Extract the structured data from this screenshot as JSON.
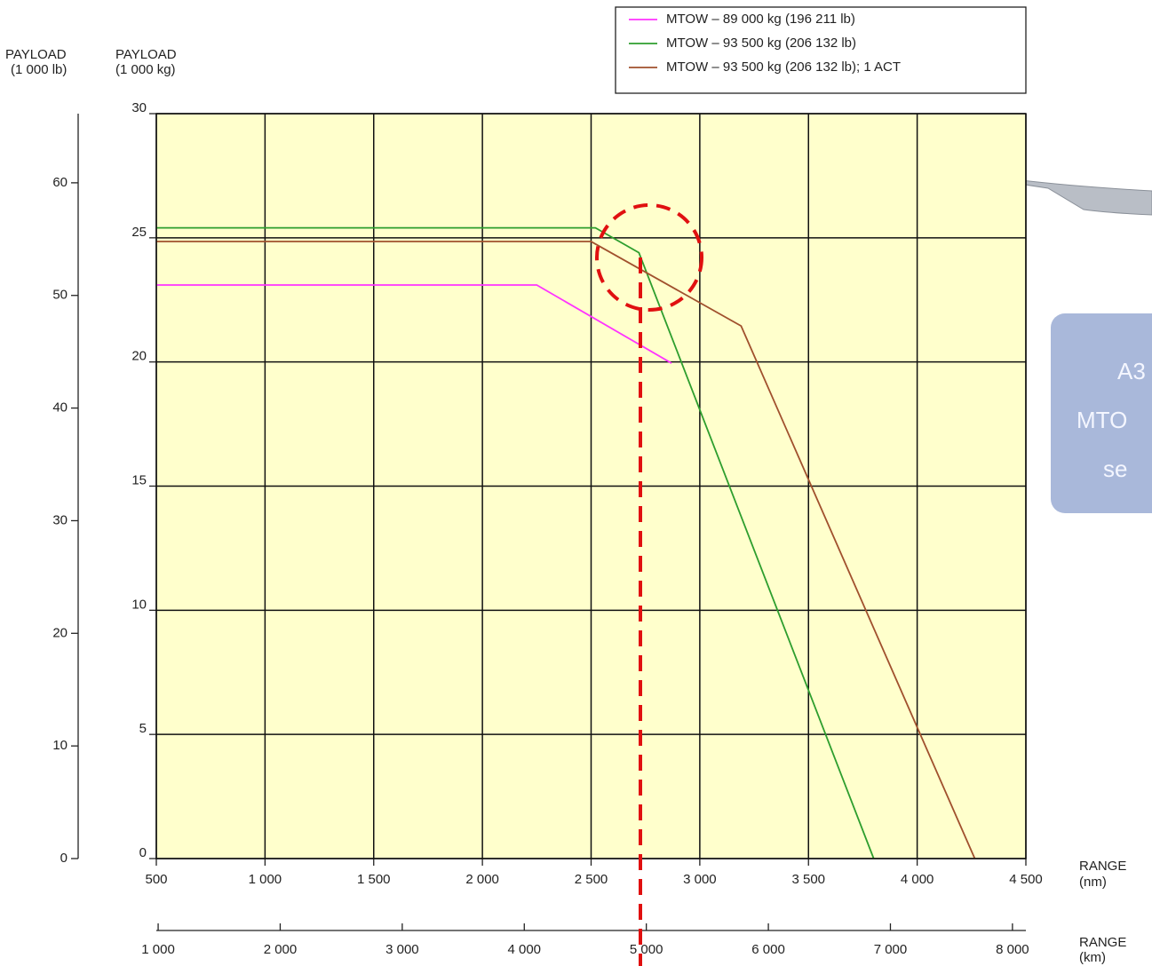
{
  "chart_data": {
    "type": "line",
    "y_labels": {
      "lb": [
        "PAYLOAD",
        "(1 000 lb)"
      ],
      "kg": [
        "PAYLOAD",
        "(1 000 kg)"
      ]
    },
    "x_labels": {
      "nm": [
        "RANGE",
        "(nm)"
      ],
      "km": [
        "RANGE",
        "(km)"
      ]
    },
    "xlim": [
      500,
      4500
    ],
    "xticks": [
      500,
      {
        "value": 1000,
        "label": "1 000"
      },
      {
        "value": 1500,
        "label": "1 500"
      },
      {
        "value": 2000,
        "label": "2 000"
      },
      {
        "value": 2500,
        "label": "2 500"
      },
      {
        "value": 3000,
        "label": "3 000"
      },
      {
        "value": 3500,
        "label": "3 500"
      },
      {
        "value": 4000,
        "label": "4 000"
      },
      {
        "value": 4500,
        "label": "4 500"
      }
    ],
    "x2lim": [
      985,
      8110
    ],
    "x2ticks": [
      {
        "value": 1000,
        "label": "1 000"
      },
      {
        "value": 2000,
        "label": "2 000"
      },
      {
        "value": 3000,
        "label": "3 000"
      },
      {
        "value": 4000,
        "label": "4 000"
      },
      {
        "value": 5000,
        "label": "5 000"
      },
      {
        "value": 6000,
        "label": "6 000"
      },
      {
        "value": 7000,
        "label": "7 000"
      },
      {
        "value": 8000,
        "label": "8 000"
      }
    ],
    "ylim": [
      0,
      30
    ],
    "yticks": [
      0,
      5,
      10,
      15,
      20,
      25,
      30
    ],
    "y2lim": [
      0,
      66.14
    ],
    "y2ticks": [
      0,
      10,
      20,
      30,
      40,
      50,
      60
    ],
    "grid": true,
    "plot_background": "#ffffcc",
    "series": [
      {
        "name": "MTOW – 89 000 kg (196 211 lb)",
        "color": "#ff33ff",
        "x": [
          500,
          2250,
          2870
        ],
        "values": [
          23.1,
          23.1,
          19.95
        ]
      },
      {
        "name": "MTOW – 93 500 kg (206 132 lb)",
        "color": "#2e9e2e",
        "x": [
          500,
          2520,
          2720,
          3800
        ],
        "values": [
          25.4,
          25.4,
          24.4,
          0
        ]
      },
      {
        "name": "MTOW – 93 500 kg (206 132 lb); 1 ACT",
        "color": "#a0502d",
        "x": [
          500,
          2500,
          3190,
          4265
        ],
        "values": [
          24.85,
          24.85,
          21.45,
          0
        ]
      }
    ],
    "overlay_text": [
      "A3",
      "MTO",
      "se"
    ]
  }
}
